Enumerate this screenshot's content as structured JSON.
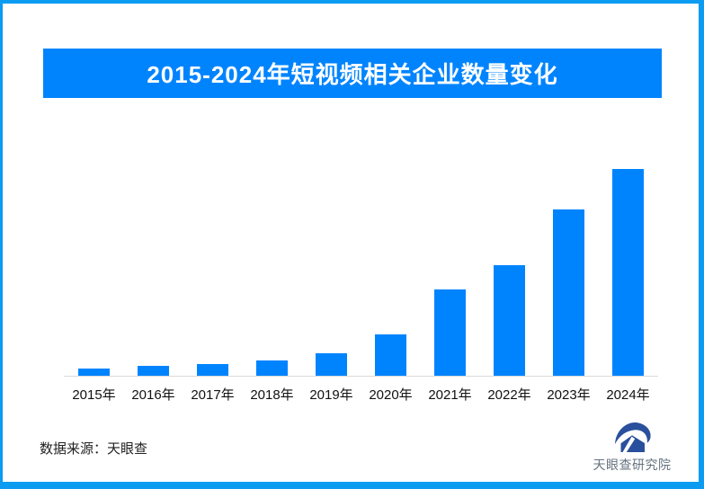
{
  "page": {
    "background": "#ffffff",
    "border_color": "#0b9cf2"
  },
  "header": {
    "title": "2015-2024年短视频相关企业数量变化",
    "background": "#0084fe",
    "text_color": "#ffffff"
  },
  "chart_data": {
    "type": "bar",
    "title": "2015-2024年短视频相关企业数量变化",
    "categories": [
      "2015年",
      "2016年",
      "2017年",
      "2018年",
      "2019年",
      "2020年",
      "2021年",
      "2022年",
      "2023年",
      "2024年"
    ],
    "values": [
      3.4,
      4.7,
      5.7,
      7.6,
      10.9,
      19.9,
      41.6,
      53.5,
      80.4,
      100
    ],
    "value_note": "no y-axis or data labels shown in image; values estimated from bar heights as percent of tallest bar (2024)",
    "xlabel": "",
    "ylabel": "",
    "ylim": [
      0,
      100
    ],
    "grid": false,
    "legend": false,
    "bar_color": "#0084fe",
    "axis_line_color": "#d9d9d9",
    "tick_label_color": "#111111"
  },
  "footer": {
    "source_label": "数据来源：天眼查",
    "logo_text": "天眼查研究院",
    "logo_color": "#2a4f9c",
    "logo_text_color": "#64727f"
  }
}
